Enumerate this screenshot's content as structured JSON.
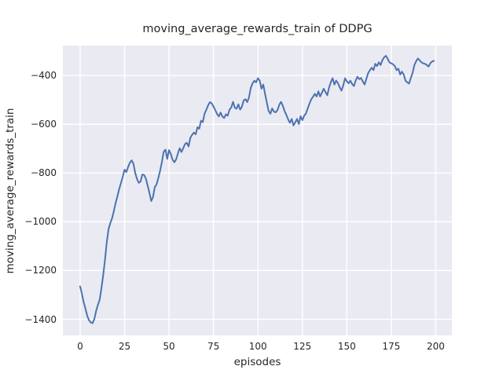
{
  "figure": {
    "background": "#ffffff",
    "plot_background": "#eaeaf2",
    "grid_color": "#ffffff",
    "line_color": "#4c72b0",
    "text_color": "#262626"
  },
  "chart_data": {
    "type": "line",
    "title": "moving_average_rewards_train of DDPG",
    "xlabel": "episodes",
    "ylabel": "moving_average_rewards_train",
    "legend": null,
    "grid": true,
    "xlim": [
      -9.7,
      209.1
    ],
    "ylim": [
      -1466,
      -277
    ],
    "x_ticks": [
      0,
      25,
      50,
      75,
      100,
      125,
      150,
      175,
      200
    ],
    "y_ticks": [
      -400,
      -600,
      -800,
      -1000,
      -1200,
      -1400
    ],
    "x_tick_labels": [
      "0",
      "25",
      "50",
      "75",
      "100",
      "125",
      "150",
      "175",
      "200"
    ],
    "y_tick_labels": [
      "−400",
      "−600",
      "−800",
      "−1000",
      "−1200",
      "−1400"
    ],
    "x_start": 0,
    "x_step": 1,
    "values": [
      -1265,
      -1295,
      -1330,
      -1356,
      -1386,
      -1404,
      -1413,
      -1416,
      -1399,
      -1366,
      -1341,
      -1320,
      -1272,
      -1218,
      -1155,
      -1083,
      -1030,
      -1005,
      -985,
      -955,
      -922,
      -895,
      -865,
      -840,
      -815,
      -786,
      -796,
      -775,
      -757,
      -748,
      -762,
      -800,
      -825,
      -840,
      -835,
      -806,
      -808,
      -823,
      -852,
      -882,
      -915,
      -898,
      -858,
      -846,
      -820,
      -790,
      -755,
      -712,
      -704,
      -742,
      -706,
      -722,
      -745,
      -756,
      -744,
      -720,
      -698,
      -714,
      -698,
      -681,
      -676,
      -691,
      -655,
      -643,
      -634,
      -641,
      -612,
      -618,
      -585,
      -591,
      -556,
      -540,
      -522,
      -509,
      -514,
      -527,
      -542,
      -557,
      -568,
      -552,
      -568,
      -574,
      -559,
      -565,
      -540,
      -531,
      -508,
      -532,
      -536,
      -518,
      -540,
      -528,
      -502,
      -497,
      -509,
      -489,
      -450,
      -432,
      -421,
      -428,
      -411,
      -421,
      -454,
      -437,
      -475,
      -511,
      -545,
      -557,
      -535,
      -548,
      -551,
      -542,
      -520,
      -508,
      -524,
      -546,
      -562,
      -580,
      -594,
      -578,
      -605,
      -592,
      -578,
      -599,
      -567,
      -583,
      -565,
      -556,
      -535,
      -515,
      -497,
      -487,
      -475,
      -486,
      -465,
      -486,
      -470,
      -454,
      -468,
      -481,
      -450,
      -427,
      -411,
      -437,
      -421,
      -431,
      -448,
      -462,
      -440,
      -411,
      -424,
      -432,
      -421,
      -435,
      -443,
      -420,
      -405,
      -415,
      -410,
      -425,
      -437,
      -413,
      -390,
      -378,
      -368,
      -378,
      -352,
      -361,
      -346,
      -357,
      -337,
      -325,
      -319,
      -332,
      -346,
      -350,
      -354,
      -361,
      -378,
      -372,
      -396,
      -384,
      -396,
      -421,
      -428,
      -433,
      -410,
      -389,
      -357,
      -341,
      -330,
      -338,
      -346,
      -350,
      -352,
      -357,
      -363,
      -349,
      -342,
      -340
    ]
  }
}
